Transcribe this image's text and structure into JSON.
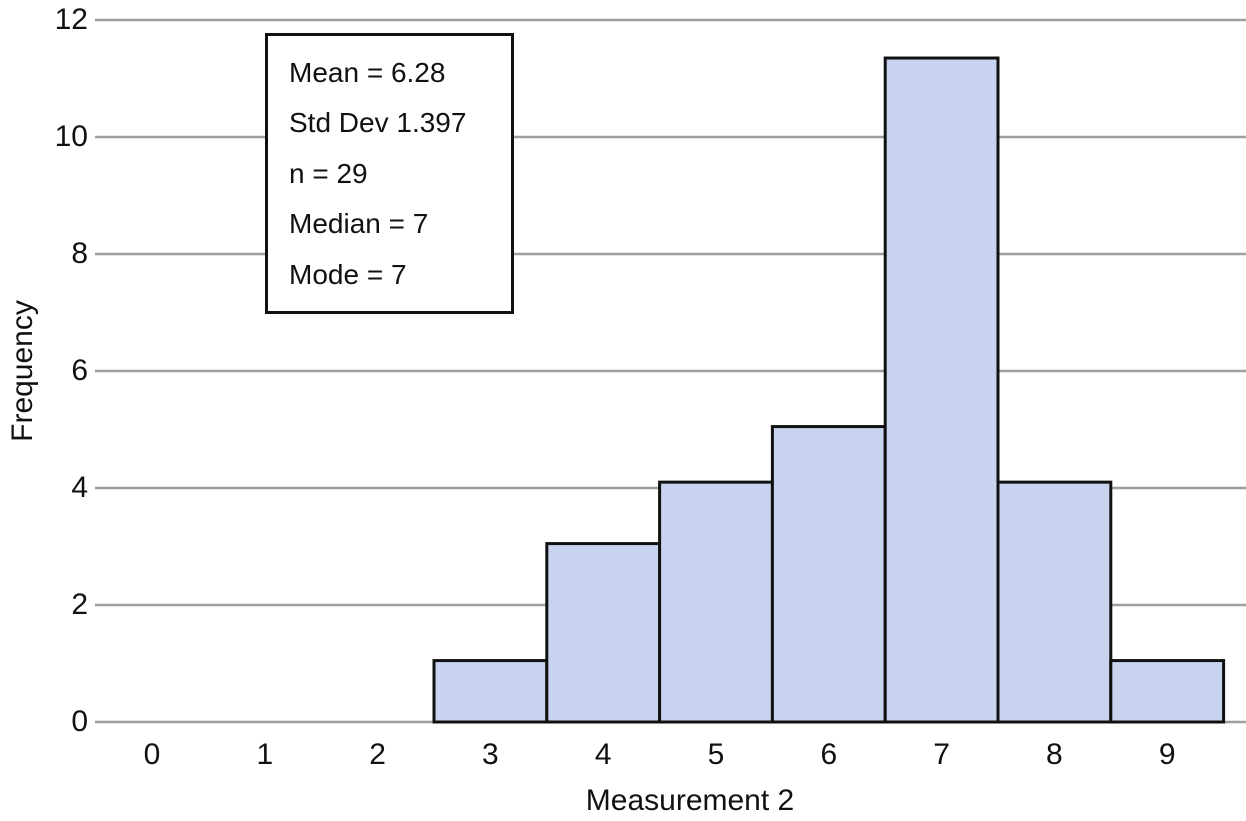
{
  "chart_data": {
    "type": "bar",
    "subtype": "histogram",
    "title": "",
    "xlabel": "Measurement 2",
    "ylabel": "Frequency",
    "x_tick_labels": [
      "0",
      "1",
      "2",
      "3",
      "4",
      "5",
      "6",
      "7",
      "8",
      "9"
    ],
    "y_ticks": [
      0,
      2,
      4,
      6,
      8,
      10,
      12
    ],
    "y_tick_labels": [
      "0",
      "2",
      "4",
      "6",
      "8",
      "10",
      "12"
    ],
    "ylim": [
      0,
      12
    ],
    "xlim": [
      -0.5,
      9.5
    ],
    "grid": "horizontal-only",
    "legend": "none",
    "bars": {
      "categories": [
        3,
        4,
        5,
        6,
        7,
        8,
        9
      ],
      "values": [
        1,
        3,
        4,
        5,
        11,
        4,
        1
      ],
      "displayed_heights": [
        1.05,
        3.05,
        4.1,
        5.05,
        11.35,
        4.1,
        1.05
      ],
      "bin_width": 1
    },
    "stats_box": {
      "lines": [
        "Mean = 6.28",
        "Std Dev 1.397",
        "n = 29",
        "Median = 7",
        "Mode = 7"
      ]
    },
    "colors": {
      "bar_fill": "#c8d3ef",
      "bar_edge": "#111111",
      "gridline": "#9e9e9e",
      "text": "#111111",
      "background": "#ffffff"
    }
  }
}
